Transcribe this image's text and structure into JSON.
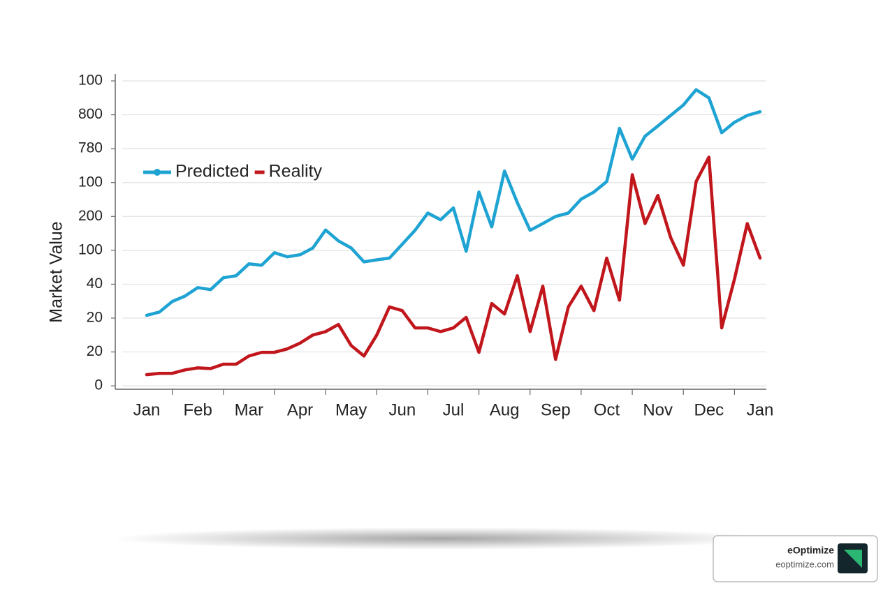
{
  "chart_data": {
    "type": "line",
    "y_label": "Market Value",
    "categories": [
      "Jan",
      null,
      null,
      null,
      "Feb",
      null,
      null,
      null,
      "Mar",
      null,
      null,
      null,
      "Apr",
      null,
      null,
      null,
      "May",
      null,
      null,
      null,
      "Jun",
      null,
      null,
      null,
      "Jul",
      null,
      null,
      null,
      "Aug",
      null,
      null,
      null,
      "Sep",
      null,
      null,
      null,
      "Oct",
      null,
      null,
      null,
      "Nov",
      null,
      null,
      null,
      "Dec",
      null,
      null,
      null,
      "Jan"
    ],
    "series": [
      {
        "name": "Predicted",
        "color": "#1ea3d3",
        "values": [
          2.08,
          2.18,
          2.49,
          2.65,
          2.9,
          2.84,
          3.19,
          3.25,
          3.6,
          3.56,
          3.93,
          3.81,
          3.87,
          4.07,
          4.6,
          4.28,
          4.07,
          3.66,
          3.72,
          3.77,
          4.18,
          4.59,
          5.1,
          4.9,
          5.25,
          3.97,
          5.72,
          4.69,
          6.34,
          5.41,
          4.59,
          4.79,
          5.0,
          5.1,
          5.51,
          5.72,
          6.03,
          7.6,
          6.69,
          7.37,
          7.67,
          7.98,
          8.29,
          8.74,
          8.5,
          7.47,
          7.78,
          7.98,
          8.09
        ]
      },
      {
        "name": "Reality",
        "color": "#c0161c",
        "values": [
          0.33,
          0.37,
          0.37,
          0.47,
          0.53,
          0.51,
          0.64,
          0.64,
          0.88,
          0.99,
          0.99,
          1.09,
          1.26,
          1.5,
          1.6,
          1.81,
          1.19,
          0.88,
          1.5,
          2.33,
          2.22,
          1.71,
          1.71,
          1.6,
          1.71,
          2.02,
          0.99,
          2.43,
          2.12,
          3.25,
          1.6,
          2.94,
          0.78,
          2.33,
          2.94,
          2.22,
          3.77,
          2.53,
          6.23,
          4.79,
          5.62,
          4.38,
          3.56,
          6.03,
          6.75,
          1.71,
          3.15,
          4.79,
          3.77
        ]
      }
    ],
    "ylim": [
      -0.1,
      9
    ],
    "yticks": [
      0,
      {
        "value": 1,
        "label": "20"
      },
      {
        "value": 2,
        "label": "20"
      },
      {
        "value": 3,
        "label": "40"
      },
      {
        "value": 4,
        "label": "100"
      },
      {
        "value": 5,
        "label": "200"
      },
      {
        "value": 6,
        "label": "100"
      },
      {
        "value": 7,
        "label": "780"
      },
      {
        "value": 8,
        "label": "800"
      },
      {
        "value": 9,
        "label": "100"
      }
    ],
    "grid": true,
    "legend": "upper left"
  },
  "watermark": {
    "name": "eOptimize",
    "url": "eoptimize.com"
  }
}
